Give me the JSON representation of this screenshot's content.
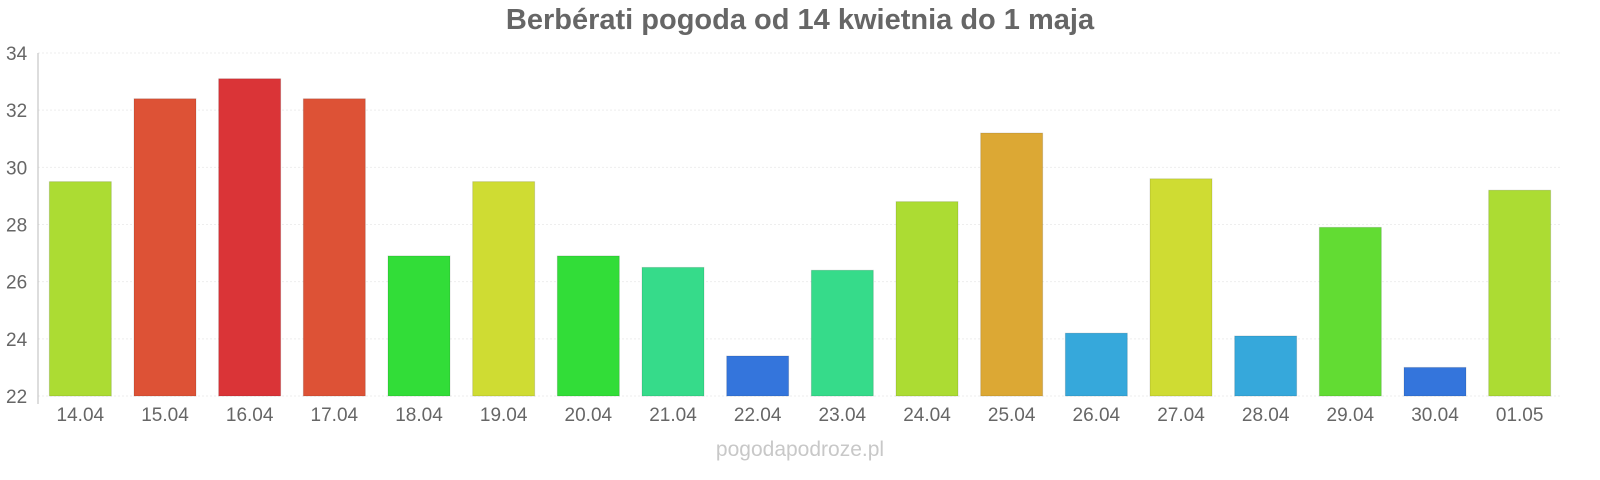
{
  "chart_data": {
    "type": "bar",
    "title": "Berbérati pogoda od 14 kwietnia do 1 maja",
    "xlabel": "",
    "ylabel": "",
    "ylim": [
      22,
      34
    ],
    "yticks": [
      22,
      24,
      26,
      28,
      30,
      32,
      34
    ],
    "grid": true,
    "categories": [
      "14.04",
      "15.04",
      "16.04",
      "17.04",
      "18.04",
      "19.04",
      "20.04",
      "21.04",
      "22.04",
      "23.04",
      "24.04",
      "25.04",
      "26.04",
      "27.04",
      "28.04",
      "29.04",
      "30.04",
      "01.05"
    ],
    "values": [
      29.5,
      32.4,
      33.1,
      32.4,
      26.9,
      29.5,
      26.9,
      26.5,
      23.4,
      26.4,
      28.8,
      31.2,
      24.2,
      29.6,
      24.1,
      27.9,
      23.0,
      29.2
    ],
    "colors": [
      "#acdc33",
      "#dd5236",
      "#da3437",
      "#dd5236",
      "#32dd38",
      "#cfdc33",
      "#32dd38",
      "#36db8a",
      "#3475dc",
      "#36db8a",
      "#acdc33",
      "#dca834",
      "#36a8db",
      "#cfdc33",
      "#36a8db",
      "#62dc33",
      "#3475dc",
      "#acdc33"
    ]
  },
  "watermark": "pogodapodroze.pl"
}
